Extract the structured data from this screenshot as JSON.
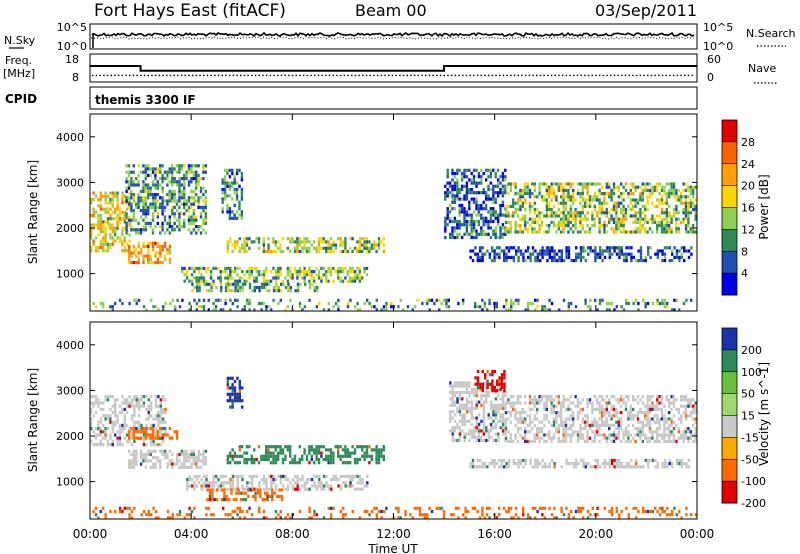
{
  "header": {
    "station": "Fort Hays East (fitACF)",
    "beam": "Beam 00",
    "date": "03/Sep/2011"
  },
  "noise_panel": {
    "left_label": "N.Sky",
    "left_ticks": [
      "10^5",
      "10^0"
    ],
    "right_label": "N.Search",
    "right_ticks": [
      "10^5",
      "10^0"
    ]
  },
  "freq_panel": {
    "left_label_line1": "Freq.",
    "left_label_line2": "[MHz]",
    "left_ticks": [
      "18",
      "8"
    ],
    "right_label": "Nave",
    "right_ticks": [
      "60",
      "0"
    ],
    "freq_steps": [
      {
        "start_ut": 0,
        "end_ut": 2,
        "mhz": 13.7
      },
      {
        "start_ut": 2,
        "end_ut": 14,
        "mhz": 12.0
      },
      {
        "start_ut": 14,
        "end_ut": 24,
        "mhz": 13.7
      }
    ],
    "nave_level": 14
  },
  "cpid": {
    "label": "CPID",
    "program": "themis 3300 IF"
  },
  "chart_data": [
    {
      "type": "heatmap",
      "panel": "power",
      "ylabel": "Slant Range [km]",
      "y_ticks": [
        1000,
        2000,
        3000,
        4000
      ],
      "ylim": [
        180,
        4500
      ],
      "xlim": [
        0,
        24
      ],
      "colorbar_label": "Power [dB]",
      "colorbar_ticks": [
        "28",
        "24",
        "20",
        "16",
        "12",
        "8",
        "4"
      ],
      "colorbar_colors": [
        "#e00000",
        "#ff6000",
        "#ffa000",
        "#ffd400",
        "#8fd050",
        "#2e8b57",
        "#1f4fb0",
        "#0000e8"
      ],
      "scatter_regions": [
        {
          "ut": [
            0.0,
            1.6
          ],
          "range": [
            1500,
            2800
          ],
          "value": 18
        },
        {
          "ut": [
            1.5,
            3.2
          ],
          "range": [
            1250,
            1700
          ],
          "value": 22
        },
        {
          "ut": [
            1.4,
            4.6
          ],
          "range": [
            1900,
            3400
          ],
          "value": 10
        },
        {
          "ut": [
            5.2,
            6.0
          ],
          "range": [
            2200,
            3300
          ],
          "value": 9
        },
        {
          "ut": [
            5.4,
            11.6
          ],
          "range": [
            1500,
            1800
          ],
          "value": 14
        },
        {
          "ut": [
            3.6,
            11.0
          ],
          "range": [
            850,
            1150
          ],
          "value": 13
        },
        {
          "ut": [
            4.0,
            9.0
          ],
          "range": [
            600,
            800
          ],
          "value": 12
        },
        {
          "ut": [
            14.0,
            16.4
          ],
          "range": [
            1800,
            3300
          ],
          "value": 7
        },
        {
          "ut": [
            16.4,
            23.9
          ],
          "range": [
            1900,
            3000
          ],
          "value": 14
        },
        {
          "ut": [
            15.0,
            23.8
          ],
          "range": [
            1300,
            1600
          ],
          "value": 6
        },
        {
          "ut": [
            0.0,
            24.0
          ],
          "range": [
            200,
            450
          ],
          "value": 10
        }
      ]
    },
    {
      "type": "heatmap",
      "panel": "velocity",
      "ylabel": "Slant Range [km]",
      "y_ticks": [
        1000,
        2000,
        3000,
        4000
      ],
      "ylim": [
        180,
        4500
      ],
      "xlim": [
        0,
        24
      ],
      "x_ticks": [
        "00:00",
        "04:00",
        "08:00",
        "12:00",
        "16:00",
        "20:00",
        "00:00"
      ],
      "xlabel": "Time UT",
      "colorbar_label": "Velocity [m s^-1]",
      "colorbar_ticks": [
        "200",
        "100",
        "50",
        "15",
        "-15",
        "-50",
        "-100",
        "-200"
      ],
      "colorbar_colors": [
        "#1c32a8",
        "#2e8b57",
        "#6ac23a",
        "#a0d870",
        "#c8c8c8",
        "#ffa800",
        "#ff6a00",
        "#e00000"
      ],
      "scatter_regions": [
        {
          "ut": [
            0.0,
            3.0
          ],
          "range": [
            1800,
            2900
          ],
          "value": 0
        },
        {
          "ut": [
            1.5,
            4.6
          ],
          "range": [
            1300,
            1700
          ],
          "value": 0
        },
        {
          "ut": [
            1.5,
            3.4
          ],
          "range": [
            1950,
            2200
          ],
          "value": -50
        },
        {
          "ut": [
            5.4,
            6.0
          ],
          "range": [
            2600,
            3300
          ],
          "value": 200
        },
        {
          "ut": [
            5.4,
            11.6
          ],
          "range": [
            1400,
            1800
          ],
          "value": 50
        },
        {
          "ut": [
            3.8,
            11.0
          ],
          "range": [
            850,
            1150
          ],
          "value": 0
        },
        {
          "ut": [
            4.6,
            7.6
          ],
          "range": [
            600,
            850
          ],
          "value": -50
        },
        {
          "ut": [
            14.2,
            16.4
          ],
          "range": [
            1900,
            3200
          ],
          "value": 0
        },
        {
          "ut": [
            15.2,
            16.4
          ],
          "range": [
            3000,
            3450
          ],
          "value": -200
        },
        {
          "ut": [
            16.4,
            23.9
          ],
          "range": [
            1900,
            2900
          ],
          "value": 0
        },
        {
          "ut": [
            15.0,
            23.8
          ],
          "range": [
            1300,
            1500
          ],
          "value": 0
        },
        {
          "ut": [
            0.0,
            24.0
          ],
          "range": [
            200,
            450
          ],
          "value": -50
        }
      ]
    }
  ]
}
